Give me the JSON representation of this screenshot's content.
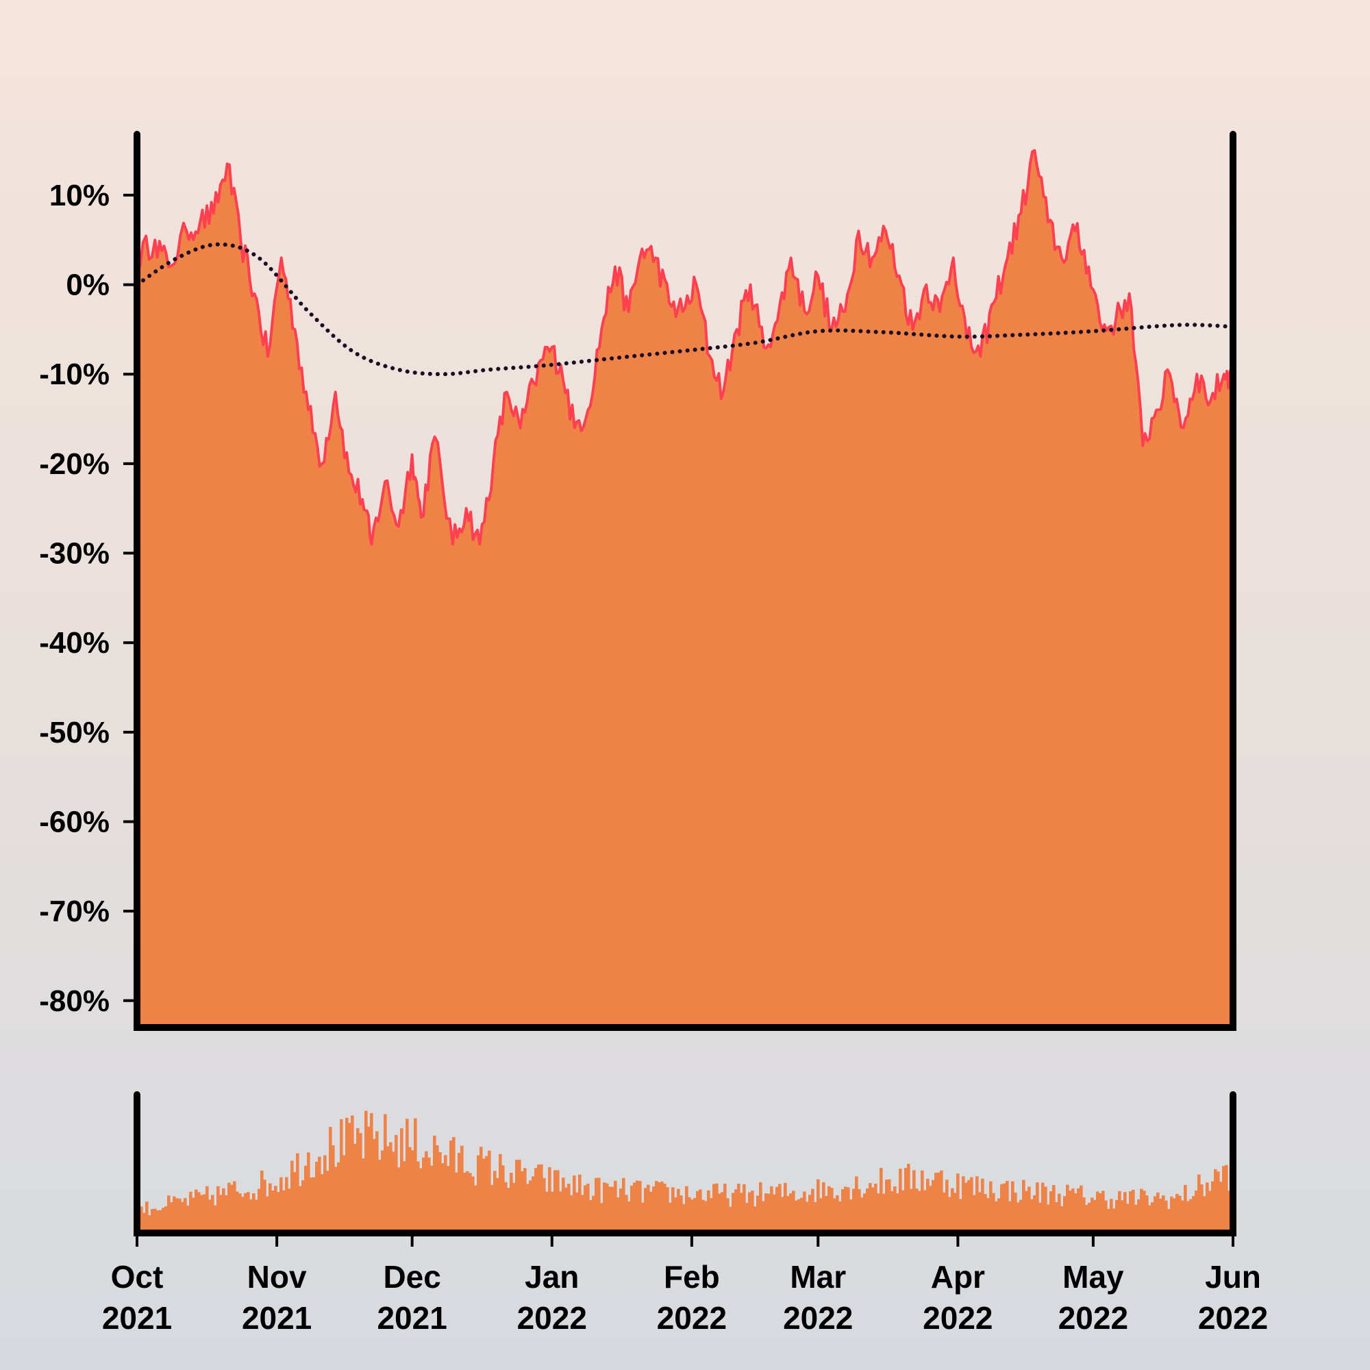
{
  "colors": {
    "area_fill": "#ee8247",
    "line": "#ff4050",
    "trend_dots": "#1a0f22",
    "volume_fill": "#ee8247",
    "axis": "#000000"
  },
  "chart_data": [
    {
      "type": "area",
      "title": "",
      "xlabel": "",
      "ylabel": "",
      "x_range": [
        "2021-10-01",
        "2022-06-01"
      ],
      "ylim": [
        -83,
        16.5
      ],
      "y_ticks": [
        10,
        0,
        -10,
        -20,
        -30,
        -40,
        -50,
        -60,
        -70,
        -80
      ],
      "y_tick_labels": [
        "10%",
        "0%",
        "-10%",
        "-20%",
        "-30%",
        "-40%",
        "-50%",
        "-60%",
        "-70%",
        "-80%"
      ],
      "grid": false,
      "series": [
        {
          "values_percent": [
            [
              "2021-10-01",
              3
            ],
            [
              "2021-10-05",
              5
            ],
            [
              "2021-10-08",
              2
            ],
            [
              "2021-10-12",
              6
            ],
            [
              "2021-10-15",
              7
            ],
            [
              "2021-10-18",
              8
            ],
            [
              "2021-10-21",
              13.5
            ],
            [
              "2021-10-24",
              5
            ],
            [
              "2021-10-27",
              -1
            ],
            [
              "2021-10-30",
              -8
            ],
            [
              "2021-11-02",
              3
            ],
            [
              "2021-11-05",
              -5
            ],
            [
              "2021-11-08",
              -14
            ],
            [
              "2021-11-11",
              -20
            ],
            [
              "2021-11-14",
              -12
            ],
            [
              "2021-11-17",
              -21
            ],
            [
              "2021-11-20",
              -24
            ],
            [
              "2021-11-22",
              -29
            ],
            [
              "2021-11-25",
              -22
            ],
            [
              "2021-11-28",
              -27
            ],
            [
              "2021-12-01",
              -19
            ],
            [
              "2021-12-03",
              -26
            ],
            [
              "2021-12-06",
              -17
            ],
            [
              "2021-12-10",
              -29
            ],
            [
              "2021-12-13",
              -25
            ],
            [
              "2021-12-16",
              -29
            ],
            [
              "2021-12-19",
              -20
            ],
            [
              "2021-12-22",
              -12
            ],
            [
              "2021-12-25",
              -16
            ],
            [
              "2021-12-28",
              -11
            ],
            [
              "2021-12-31",
              -7
            ],
            [
              "2022-01-03",
              -9
            ],
            [
              "2022-01-06",
              -16
            ],
            [
              "2022-01-09",
              -14
            ],
            [
              "2022-01-12",
              -5
            ],
            [
              "2022-01-15",
              2
            ],
            [
              "2022-01-18",
              -3
            ],
            [
              "2022-01-21",
              4
            ],
            [
              "2022-01-24",
              3
            ],
            [
              "2022-01-27",
              -2
            ],
            [
              "2022-01-30",
              -3
            ],
            [
              "2022-02-02",
              0
            ],
            [
              "2022-02-05",
              -8
            ],
            [
              "2022-02-08",
              -12
            ],
            [
              "2022-02-11",
              -5
            ],
            [
              "2022-02-14",
              0
            ],
            [
              "2022-02-17",
              -7
            ],
            [
              "2022-02-20",
              -4
            ],
            [
              "2022-02-23",
              3
            ],
            [
              "2022-02-26",
              -3
            ],
            [
              "2022-03-01",
              1
            ],
            [
              "2022-03-04",
              -5
            ],
            [
              "2022-03-07",
              -3
            ],
            [
              "2022-03-10",
              6
            ],
            [
              "2022-03-13",
              3
            ],
            [
              "2022-03-16",
              6
            ],
            [
              "2022-03-19",
              1
            ],
            [
              "2022-03-22",
              -5
            ],
            [
              "2022-03-25",
              0
            ],
            [
              "2022-03-28",
              -3
            ],
            [
              "2022-03-31",
              3
            ],
            [
              "2022-04-03",
              -6
            ],
            [
              "2022-04-06",
              -8
            ],
            [
              "2022-04-09",
              -2
            ],
            [
              "2022-04-12",
              3
            ],
            [
              "2022-04-15",
              8
            ],
            [
              "2022-04-18",
              15
            ],
            [
              "2022-04-21",
              7
            ],
            [
              "2022-04-24",
              3
            ],
            [
              "2022-04-27",
              6
            ],
            [
              "2022-04-30",
              2
            ],
            [
              "2022-05-03",
              -5
            ],
            [
              "2022-05-06",
              -4
            ],
            [
              "2022-05-09",
              -1
            ],
            [
              "2022-05-12",
              -18
            ],
            [
              "2022-05-15",
              -14
            ],
            [
              "2022-05-18",
              -10
            ],
            [
              "2022-05-21",
              -16
            ],
            [
              "2022-05-24",
              -10
            ],
            [
              "2022-05-27",
              -13
            ],
            [
              "2022-05-30",
              -10
            ],
            [
              "2022-06-01",
              -10
            ]
          ]
        },
        {
          "type": "dotted-line",
          "values_percent": [
            [
              "2021-10-01",
              0
            ],
            [
              "2021-10-10",
              3
            ],
            [
              "2021-10-19",
              4.5
            ],
            [
              "2021-10-28",
              3
            ],
            [
              "2021-11-08",
              -3
            ],
            [
              "2021-11-18",
              -7.5
            ],
            [
              "2021-11-28",
              -9.5
            ],
            [
              "2021-12-08",
              -10
            ],
            [
              "2021-12-18",
              -9.5
            ],
            [
              "2021-12-31",
              -9
            ],
            [
              "2022-01-15",
              -8.2
            ],
            [
              "2022-02-01",
              -7.3
            ],
            [
              "2022-02-15",
              -6.5
            ],
            [
              "2022-03-01",
              -5.2
            ],
            [
              "2022-03-15",
              -5.3
            ],
            [
              "2022-04-01",
              -5.8
            ],
            [
              "2022-04-15",
              -5.6
            ],
            [
              "2022-05-01",
              -5.2
            ],
            [
              "2022-05-20",
              -4.5
            ],
            [
              "2022-06-01",
              -4.7
            ]
          ]
        }
      ]
    },
    {
      "type": "bar",
      "title": "",
      "xlabel": "",
      "ylabel": "",
      "x_range": [
        "2021-10-01",
        "2022-06-01"
      ],
      "x_ticks": [
        {
          "date": "2021-10-01",
          "month": "Oct",
          "year": "2021"
        },
        {
          "date": "2021-11-01",
          "month": "Nov",
          "year": "2021"
        },
        {
          "date": "2021-12-01",
          "month": "Dec",
          "year": "2021"
        },
        {
          "date": "2022-01-01",
          "month": "Jan",
          "year": "2022"
        },
        {
          "date": "2022-02-01",
          "month": "Feb",
          "year": "2022"
        },
        {
          "date": "2022-03-01",
          "month": "Mar",
          "year": "2022"
        },
        {
          "date": "2022-04-01",
          "month": "Apr",
          "year": "2022"
        },
        {
          "date": "2022-05-01",
          "month": "May",
          "year": "2022"
        },
        {
          "date": "2022-06-01",
          "month": "Jun",
          "year": "2022"
        }
      ],
      "relative_volume_envelope": [
        [
          "2021-10-01",
          0.2
        ],
        [
          "2021-10-15",
          0.3
        ],
        [
          "2021-11-01",
          0.45
        ],
        [
          "2021-11-10",
          0.7
        ],
        [
          "2021-11-20",
          0.82
        ],
        [
          "2021-12-01",
          0.78
        ],
        [
          "2021-12-10",
          0.65
        ],
        [
          "2021-12-25",
          0.5
        ],
        [
          "2022-01-10",
          0.38
        ],
        [
          "2022-01-25",
          0.35
        ],
        [
          "2022-02-10",
          0.33
        ],
        [
          "2022-02-25",
          0.35
        ],
        [
          "2022-03-10",
          0.42
        ],
        [
          "2022-03-25",
          0.48
        ],
        [
          "2022-04-05",
          0.4
        ],
        [
          "2022-04-20",
          0.35
        ],
        [
          "2022-05-05",
          0.3
        ],
        [
          "2022-05-20",
          0.3
        ],
        [
          "2022-06-01",
          0.55
        ]
      ],
      "grid": false
    }
  ]
}
